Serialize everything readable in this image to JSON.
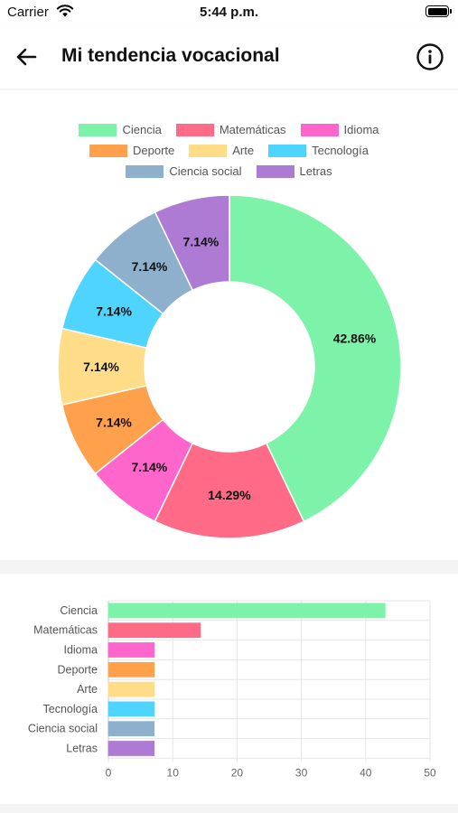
{
  "status_bar": {
    "carrier": "Carrier",
    "time": "5:44 p.m."
  },
  "header": {
    "title": "Mi tendencia vocacional"
  },
  "colors": {
    "Ciencia": "#7df3aa",
    "Matemáticas": "#ff6b86",
    "Idioma": "#ff66cc",
    "Deporte": "#ffa04d",
    "Arte": "#ffdd88",
    "Tecnología": "#4fd3ff",
    "Ciencia social": "#8fb0cc",
    "Letras": "#ad7bd4"
  },
  "legend": {
    "rows": [
      [
        "Ciencia",
        "Matemáticas",
        "Idioma"
      ],
      [
        "Deporte",
        "Arte",
        "Tecnología"
      ],
      [
        "Ciencia social",
        "Letras"
      ]
    ]
  },
  "chart_data": [
    {
      "type": "pie",
      "categories": [
        "Ciencia",
        "Matemáticas",
        "Idioma",
        "Deporte",
        "Arte",
        "Tecnología",
        "Ciencia social",
        "Letras"
      ],
      "values": [
        42.86,
        14.29,
        7.14,
        7.14,
        7.14,
        7.14,
        7.14,
        7.14
      ],
      "labels": [
        "42.86%",
        "14.29%",
        "7.14%",
        "7.14%",
        "7.14%",
        "7.14%",
        "7.14%",
        "7.14%"
      ],
      "legend": "top"
    },
    {
      "type": "bar",
      "orientation": "horizontal",
      "categories": [
        "Ciencia",
        "Matemáticas",
        "Idioma",
        "Deporte",
        "Arte",
        "Tecnología",
        "Ciencia social",
        "Letras"
      ],
      "values": [
        43,
        14.3,
        7.1,
        7.1,
        7.1,
        7.1,
        7.1,
        7.1
      ],
      "xlim": [
        0,
        50
      ],
      "xticks": [
        "0",
        "10",
        "20",
        "30",
        "40",
        "50"
      ],
      "grid": true
    }
  ]
}
